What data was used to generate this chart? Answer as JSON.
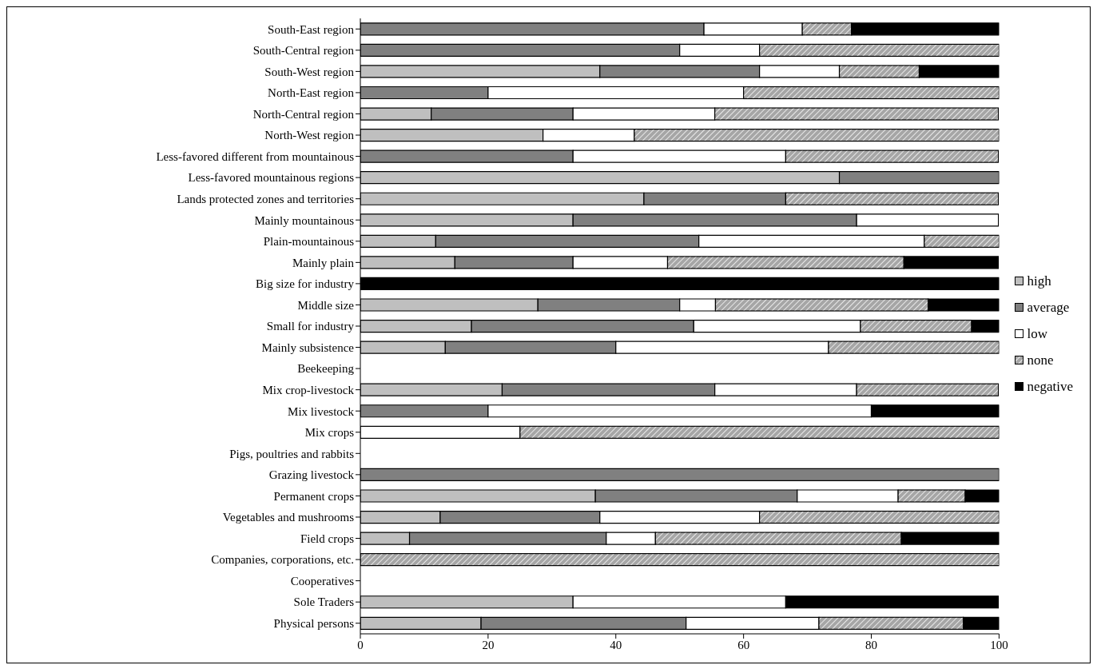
{
  "chart_data": {
    "type": "bar",
    "orientation": "horizontal",
    "stacked": true,
    "categories": [
      "South-East region",
      "South-Central region",
      "South-West region",
      "North-East region",
      "North-Central region",
      "North-West region",
      "Less-favored different from mountainous",
      "Less-favored mountainous regions",
      "Lands protected zones and territories",
      "Mainly mountainous",
      "Plain-mountainous",
      "Mainly plain",
      "Big size for industry",
      "Middle size",
      "Small for industry",
      "Mainly subsistence",
      "Beekeeping",
      "Mix crop-livestock",
      "Mix livestock",
      "Mix crops",
      "Pigs, poultries and rabbits",
      "Grazing livestock",
      "Permanent crops",
      "Vegetables and mushrooms",
      "Field crops",
      "Companies, corporations, etc.",
      "Cooperatives",
      "Sole Traders",
      "Physical persons"
    ],
    "series": [
      {
        "name": "high",
        "color": "#bfbfbf",
        "values": [
          null,
          null,
          37.5,
          null,
          11.1,
          28.6,
          null,
          75,
          44.4,
          33.3,
          11.8,
          14.8,
          null,
          27.8,
          17.4,
          13.3,
          null,
          22.2,
          null,
          null,
          null,
          null,
          36.8,
          12.5,
          7.7,
          null,
          null,
          33.3,
          18.9
        ]
      },
      {
        "name": "average",
        "color": "#808080",
        "values": [
          53.8,
          50,
          25,
          20,
          22.2,
          null,
          33.3,
          25,
          22.2,
          44.4,
          41.2,
          18.5,
          null,
          22.2,
          34.8,
          26.7,
          null,
          33.3,
          20,
          null,
          null,
          100,
          31.6,
          25,
          30.8,
          null,
          null,
          null,
          32.1
        ]
      },
      {
        "name": "low",
        "color": "#ffffff",
        "values": [
          15.4,
          12.5,
          12.5,
          40,
          22.2,
          14.3,
          33.3,
          null,
          null,
          22.2,
          35.3,
          14.8,
          null,
          5.6,
          26.1,
          33.3,
          null,
          22.2,
          60,
          25,
          null,
          null,
          15.8,
          25,
          7.7,
          null,
          null,
          33.3,
          20.8
        ]
      },
      {
        "name": "none",
        "color": "#a6a6a6",
        "values": [
          7.7,
          37.5,
          12.5,
          40,
          44.4,
          57.1,
          33.3,
          null,
          33.3,
          null,
          11.8,
          37,
          null,
          33.3,
          17.4,
          26.7,
          null,
          22.2,
          null,
          75,
          null,
          null,
          10.5,
          37.5,
          38.5,
          100,
          null,
          null,
          22.6
        ]
      },
      {
        "name": "negative",
        "color": "#000000",
        "values": [
          23.1,
          null,
          12.5,
          null,
          null,
          null,
          null,
          null,
          null,
          null,
          null,
          14.8,
          100,
          11.1,
          4.3,
          null,
          null,
          null,
          20,
          null,
          null,
          null,
          5.3,
          null,
          15.4,
          null,
          null,
          33.3,
          5.7
        ]
      }
    ],
    "xlim": [
      0,
      100
    ],
    "xticks": [
      0,
      20,
      40,
      60,
      80,
      100
    ],
    "grid": false,
    "legend": "right"
  }
}
